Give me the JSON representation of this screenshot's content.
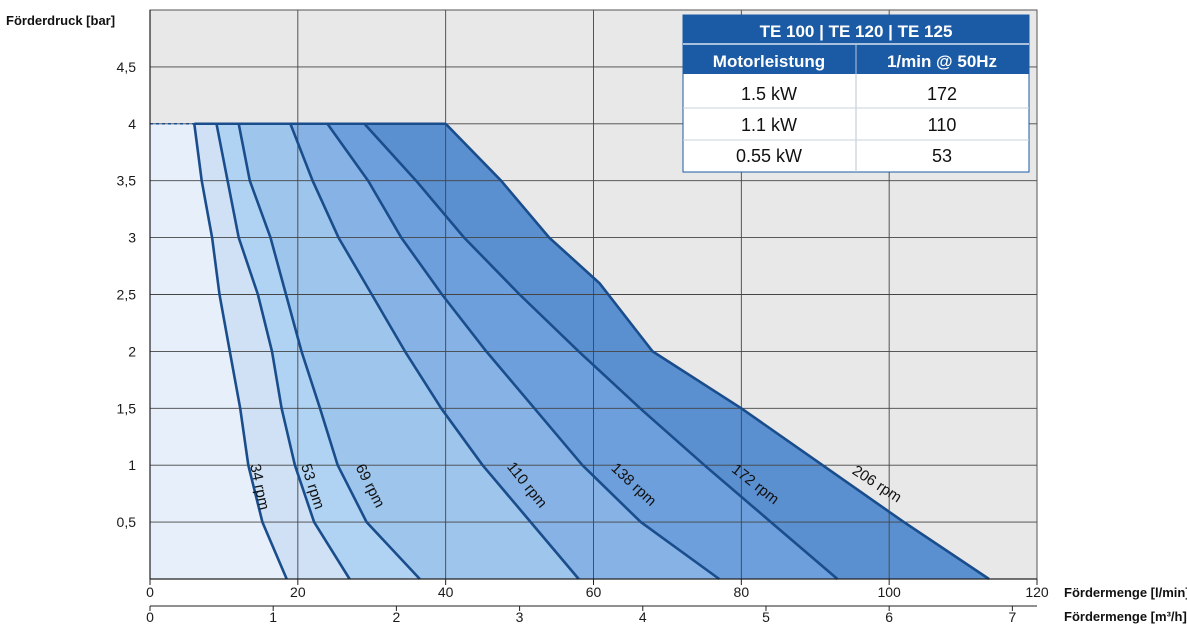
{
  "chart_data": {
    "type": "area",
    "ylabel": "Förderdruck [bar]",
    "xlabel": "Fördermenge [l/min]",
    "xlabel2": "Fördermenge [m³/h]",
    "xlim": [
      0,
      120
    ],
    "ylim": [
      0,
      5
    ],
    "x_ticks": [
      "0",
      "20",
      "40",
      "60",
      "80",
      "100",
      "120"
    ],
    "x2_ticks": [
      "0",
      "1",
      "2",
      "3",
      "4",
      "5",
      "6",
      "7"
    ],
    "y_ticks": [
      "0,5",
      "1",
      "1,5",
      "2",
      "2,5",
      "3",
      "3,5",
      "4",
      "4,5"
    ],
    "grid": true,
    "series": [
      {
        "name": "34 rpm",
        "points": [
          [
            6,
            4
          ],
          [
            7,
            3.5
          ],
          [
            8.4,
            3
          ],
          [
            9.4,
            2.5
          ],
          [
            10.8,
            2
          ],
          [
            12.2,
            1.5
          ],
          [
            13.3,
            1
          ],
          [
            15.2,
            0.5
          ],
          [
            18.5,
            0
          ]
        ]
      },
      {
        "name": "53 rpm",
        "points": [
          [
            9,
            4
          ],
          [
            10.5,
            3.5
          ],
          [
            12,
            3
          ],
          [
            14.6,
            2.5
          ],
          [
            16.5,
            2
          ],
          [
            17.8,
            1.5
          ],
          [
            19.6,
            1
          ],
          [
            22.2,
            0.5
          ],
          [
            27,
            0
          ]
        ]
      },
      {
        "name": "69 rpm",
        "points": [
          [
            12,
            4
          ],
          [
            13.5,
            3.5
          ],
          [
            16.3,
            3
          ],
          [
            18.4,
            2.5
          ],
          [
            20.5,
            2
          ],
          [
            23,
            1.5
          ],
          [
            25.4,
            1
          ],
          [
            29.3,
            0.5
          ],
          [
            36.5,
            0
          ]
        ]
      },
      {
        "name": "110 rpm",
        "points": [
          [
            19,
            4
          ],
          [
            22,
            3.5
          ],
          [
            25.5,
            3
          ],
          [
            30,
            2.5
          ],
          [
            34.5,
            2
          ],
          [
            39.4,
            1.5
          ],
          [
            45,
            1
          ],
          [
            51.5,
            0.5
          ],
          [
            58,
            0
          ]
        ]
      },
      {
        "name": "138 rpm",
        "points": [
          [
            24,
            4
          ],
          [
            29.5,
            3.5
          ],
          [
            34,
            3
          ],
          [
            39.5,
            2.5
          ],
          [
            45.5,
            2
          ],
          [
            52,
            1.5
          ],
          [
            58.5,
            1
          ],
          [
            66.4,
            0.5
          ],
          [
            77,
            0
          ]
        ]
      },
      {
        "name": "172 rpm",
        "points": [
          [
            29,
            4
          ],
          [
            36,
            3.5
          ],
          [
            42.5,
            3
          ],
          [
            50,
            2.5
          ],
          [
            58,
            2
          ],
          [
            66.3,
            1.5
          ],
          [
            75,
            1
          ],
          [
            84,
            0.5
          ],
          [
            93,
            0
          ]
        ]
      },
      {
        "name": "206 rpm",
        "points": [
          [
            40,
            4
          ],
          [
            47.5,
            3.5
          ],
          [
            54,
            3
          ],
          [
            60.8,
            2.6
          ],
          [
            68,
            2
          ],
          [
            80,
            1.5
          ],
          [
            91,
            1
          ],
          [
            102,
            0.5
          ],
          [
            113.5,
            0
          ]
        ]
      }
    ],
    "fill_colors": [
      "#e6effa",
      "#d0e1f6",
      "#b1d3f3",
      "#9ec5ec",
      "#86b2e5",
      "#6d9fdc",
      "#5a8fd0"
    ],
    "line_color": "#1a4d8c",
    "table": {
      "title": "TE 100 | TE 120 | TE 125",
      "headers": [
        "Motorleistung",
        "1/min @ 50Hz"
      ],
      "rows": [
        [
          "1.5 kW",
          "172"
        ],
        [
          "1.1 kW",
          "110"
        ],
        [
          "0.55 kW",
          "53"
        ]
      ],
      "header_color": "#1b5aa4"
    }
  }
}
